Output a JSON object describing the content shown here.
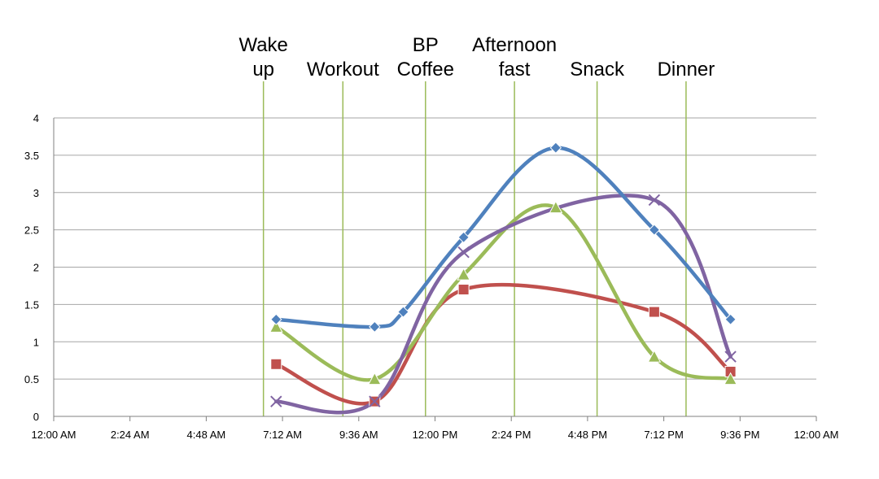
{
  "chart_data": {
    "type": "line",
    "title": "",
    "xlabel": "",
    "ylabel": "",
    "x_unit": "hours since 12:00 AM",
    "xlim": [
      0,
      24
    ],
    "ylim": [
      0,
      4
    ],
    "x_ticks": [
      {
        "value": 0,
        "label": "12:00 AM"
      },
      {
        "value": 2.4,
        "label": "2:24 AM"
      },
      {
        "value": 4.8,
        "label": "4:48 AM"
      },
      {
        "value": 7.2,
        "label": "7:12 AM"
      },
      {
        "value": 9.6,
        "label": "9:36 AM"
      },
      {
        "value": 12,
        "label": "12:00 PM"
      },
      {
        "value": 14.4,
        "label": "2:24 PM"
      },
      {
        "value": 16.8,
        "label": "4:48 PM"
      },
      {
        "value": 19.2,
        "label": "7:12 PM"
      },
      {
        "value": 21.6,
        "label": "9:36 PM"
      },
      {
        "value": 24,
        "label": "12:00 AM"
      }
    ],
    "y_ticks": [
      {
        "value": 0,
        "label": "0"
      },
      {
        "value": 0.5,
        "label": "0.5"
      },
      {
        "value": 1,
        "label": "1"
      },
      {
        "value": 1.5,
        "label": "1.5"
      },
      {
        "value": 2,
        "label": "2"
      },
      {
        "value": 2.5,
        "label": "2.5"
      },
      {
        "value": 3,
        "label": "3"
      },
      {
        "value": 3.5,
        "label": "3.5"
      },
      {
        "value": 4,
        "label": "4"
      }
    ],
    "grid": "horizontal",
    "legend": "none",
    "events": [
      {
        "x": 6.6,
        "label_lines": [
          "Wake",
          "up"
        ]
      },
      {
        "x": 9.1,
        "label_lines": [
          "Workout"
        ]
      },
      {
        "x": 11.7,
        "label_lines": [
          "BP",
          "Coffee"
        ]
      },
      {
        "x": 14.5,
        "label_lines": [
          "Afternoon",
          "fast"
        ]
      },
      {
        "x": 17.1,
        "label_lines": [
          "Snack"
        ]
      },
      {
        "x": 19.9,
        "label_lines": [
          "Dinner"
        ]
      }
    ],
    "event_line_color": "#9bbb59",
    "series": [
      {
        "color": "#4f81bd",
        "marker": "diamond",
        "x": [
          7.0,
          10.1,
          11.0,
          12.9,
          15.8,
          18.9,
          21.3
        ],
        "y": [
          1.3,
          1.2,
          1.4,
          2.4,
          3.6,
          2.5,
          1.3
        ]
      },
      {
        "color": "#c0504d",
        "marker": "square",
        "x": [
          7.0,
          10.1,
          12.9,
          18.9,
          21.3
        ],
        "y": [
          0.7,
          0.2,
          1.7,
          1.4,
          0.6
        ]
      },
      {
        "color": "#9bbb59",
        "marker": "triangle",
        "x": [
          7.0,
          10.1,
          12.9,
          15.8,
          18.9,
          21.3
        ],
        "y": [
          1.2,
          0.5,
          1.9,
          2.8,
          0.8,
          0.5
        ]
      },
      {
        "color": "#8064a2",
        "marker": "x",
        "x": [
          7.0,
          10.1,
          12.9,
          18.9,
          21.3
        ],
        "y": [
          0.2,
          0.2,
          2.2,
          2.9,
          0.8
        ]
      }
    ]
  }
}
